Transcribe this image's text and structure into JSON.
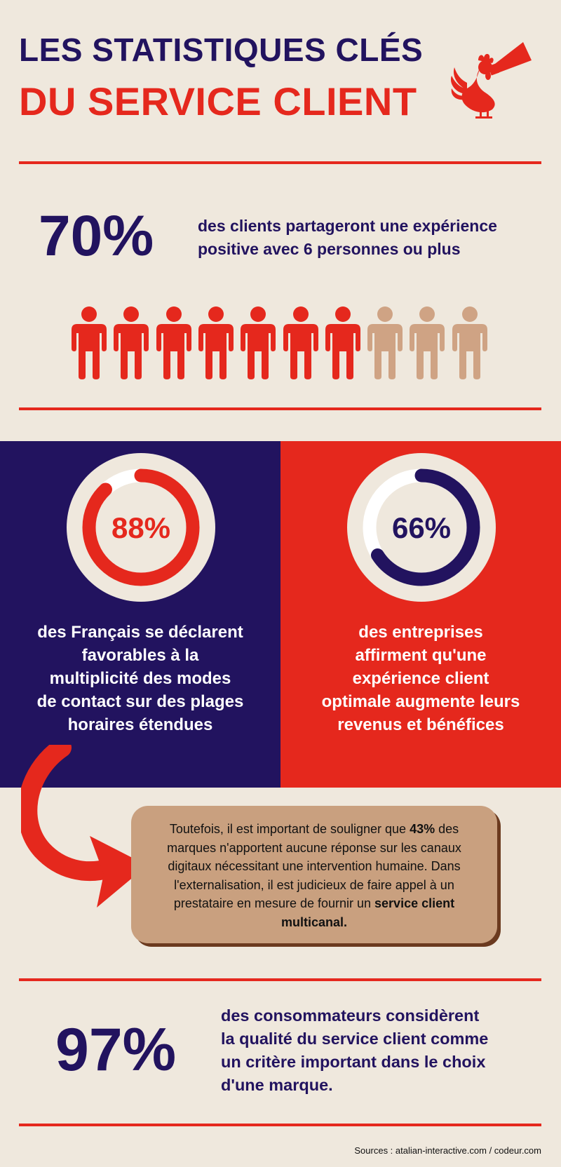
{
  "header": {
    "title_line1": "LES STATISTIQUES CLÉS",
    "title_line2": "DU SERVICE CLIENT"
  },
  "stat_70": {
    "value": "70%",
    "text_line1": "des clients partageront une expérience",
    "text_line2": "positive avec 6 personnes ou plus",
    "people_total": 10,
    "people_highlighted": 7
  },
  "panel_left": {
    "value": "88%",
    "progress": 0.88,
    "lines": [
      "des Français se déclarent",
      "favorables à la",
      "multiplicité des modes",
      "de contact sur des plages",
      "horaires étendues"
    ]
  },
  "panel_right": {
    "value": "66%",
    "progress": 0.66,
    "lines": [
      "des entreprises",
      "affirment qu'une",
      "expérience client",
      "optimale augmente leurs",
      "revenus et bénéfices"
    ]
  },
  "callout": {
    "part1": "Toutefois, il est important de souligner que ",
    "bold1": "43%",
    "part2": " des marques n'apportent aucune réponse sur les canaux digitaux nécessitant une intervention humaine. Dans l'externalisation, il est judicieux de faire appel à un prestataire en mesure de fournir un ",
    "bold2": "service client multicanal."
  },
  "stat_97": {
    "value": "97%",
    "lines": [
      "des consommateurs considèrent",
      "la qualité du service client comme",
      "un critère important dans le choix",
      "d'une marque."
    ]
  },
  "footer": {
    "sources": "Sources : atalian-interactive.com / codeur.com"
  },
  "colors": {
    "navy": "#22135f",
    "red": "#e5281d",
    "cream": "#efe8dd",
    "tan": "#cfa384",
    "callout_bg": "#c9a07f"
  },
  "icons": {
    "logo": "rooster-megaphone-icon",
    "person": "person-icon",
    "arrow": "curved-arrow-icon"
  }
}
